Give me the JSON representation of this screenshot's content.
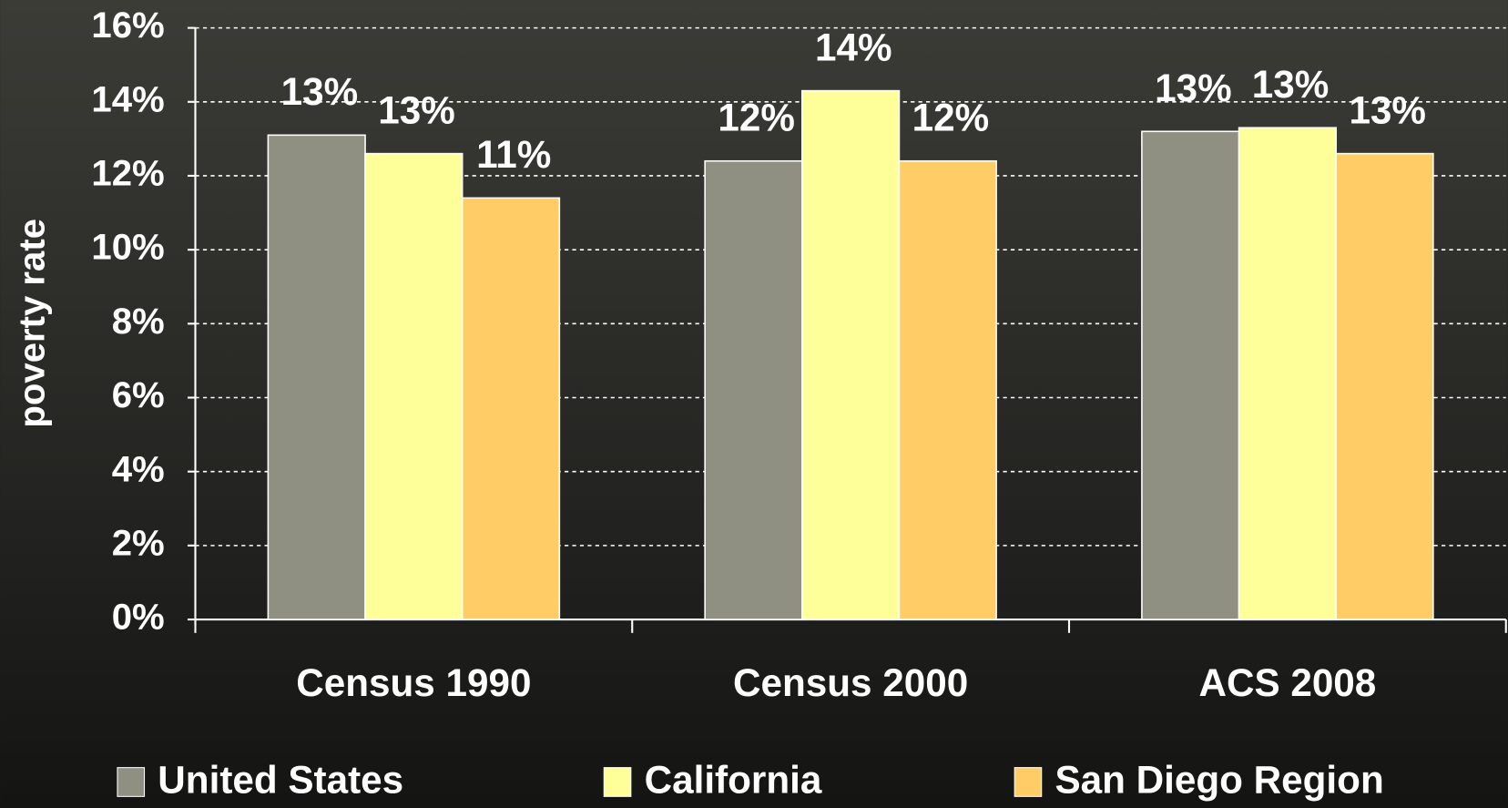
{
  "chart_data": {
    "type": "bar",
    "y_label": "poverty rate",
    "categories": [
      "Census 1990",
      "Census 2000",
      "ACS 2008"
    ],
    "series": [
      {
        "name": "United States",
        "color": "#8f8f82",
        "values": [
          13.1,
          12.4,
          13.2
        ],
        "value_labels": [
          "13%",
          "12%",
          "13%"
        ]
      },
      {
        "name": "California",
        "color": "#ffff99",
        "values": [
          12.6,
          14.3,
          13.3
        ],
        "value_labels": [
          "13%",
          "14%",
          "13%"
        ]
      },
      {
        "name": "San Diego Region",
        "color": "#ffcc66",
        "values": [
          11.4,
          12.4,
          12.6
        ],
        "value_labels": [
          "11%",
          "12%",
          "13%"
        ]
      }
    ],
    "ylim": [
      0,
      16
    ],
    "yticks": [
      {
        "value": 0,
        "label": "0%"
      },
      {
        "value": 2,
        "label": "2%"
      },
      {
        "value": 4,
        "label": "4%"
      },
      {
        "value": 6,
        "label": "6%"
      },
      {
        "value": 8,
        "label": "8%"
      },
      {
        "value": 10,
        "label": "10%"
      },
      {
        "value": 12,
        "label": "12%"
      },
      {
        "value": 14,
        "label": "14%"
      },
      {
        "value": 16,
        "label": "16%"
      }
    ],
    "grid": true
  }
}
